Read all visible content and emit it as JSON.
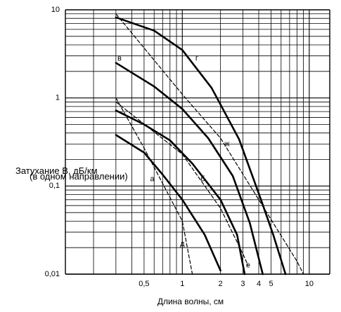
{
  "chart_data": {
    "type": "line",
    "x_scale": "log",
    "y_scale": "log",
    "xlim": [
      0.12,
      14.5
    ],
    "ylim": [
      0.01,
      10
    ],
    "xlabel": "Длина волны, см",
    "ylabel_line1": "Затухание В, дБ/км",
    "ylabel_line2": "(в одном направлении)",
    "x_ticks": [
      {
        "value": 0.5,
        "label": "0,5"
      },
      {
        "value": 1,
        "label": "1"
      },
      {
        "value": 2,
        "label": "2"
      },
      {
        "value": 3,
        "label": "3"
      },
      {
        "value": 4,
        "label": "4"
      },
      {
        "value": 5,
        "label": "5"
      },
      {
        "value": 10,
        "label": "10"
      }
    ],
    "y_ticks": [
      {
        "value": 10,
        "label": "10"
      },
      {
        "value": 1,
        "label": "1"
      },
      {
        "value": 0.1,
        "label": "0,1"
      },
      {
        "value": 0.01,
        "label": "0,01"
      }
    ],
    "grid": true,
    "series": [
      {
        "name": "а",
        "style": "solid",
        "label_at": [
          0.58,
          0.12
        ],
        "points": [
          [
            0.3,
            0.38
          ],
          [
            0.5,
            0.24
          ],
          [
            0.7,
            0.135
          ],
          [
            1.0,
            0.07
          ],
          [
            1.5,
            0.028
          ],
          [
            2.0,
            0.011
          ]
        ]
      },
      {
        "name": "б",
        "style": "solid",
        "label_at": [
          1.45,
          0.12
        ],
        "points": [
          [
            0.3,
            0.72
          ],
          [
            0.5,
            0.5
          ],
          [
            0.8,
            0.33
          ],
          [
            1.2,
            0.18
          ],
          [
            2.0,
            0.07
          ],
          [
            2.7,
            0.028
          ],
          [
            3.1,
            0.01
          ]
        ]
      },
      {
        "name": "в",
        "style": "solid",
        "label_at": [
          0.32,
          2.8
        ],
        "points": [
          [
            0.3,
            2.5
          ],
          [
            0.6,
            1.35
          ],
          [
            1.0,
            0.75
          ],
          [
            1.6,
            0.35
          ],
          [
            2.5,
            0.13
          ],
          [
            3.4,
            0.038
          ],
          [
            4.3,
            0.01
          ]
        ]
      },
      {
        "name": "г",
        "style": "solid",
        "label_at": [
          1.3,
          2.8
        ],
        "points": [
          [
            0.3,
            8.2
          ],
          [
            0.6,
            5.8
          ],
          [
            1.0,
            3.5
          ],
          [
            1.7,
            1.3
          ],
          [
            2.8,
            0.34
          ],
          [
            4.2,
            0.068
          ],
          [
            5.2,
            0.028
          ],
          [
            6.5,
            0.01
          ]
        ]
      },
      {
        "name": "д",
        "style": "dashed",
        "label_at": [
          1.0,
          0.022
        ],
        "points": [
          [
            0.3,
            1.0
          ],
          [
            0.5,
            0.27
          ],
          [
            1.0,
            0.04
          ],
          [
            1.2,
            0.01
          ]
        ]
      },
      {
        "name": "е",
        "style": "dashed",
        "label_at": [
          3.3,
          0.0125
        ],
        "points": [
          [
            0.3,
            0.9
          ],
          [
            1.0,
            0.23
          ],
          [
            2.0,
            0.056
          ],
          [
            3.0,
            0.017
          ],
          [
            3.3,
            0.0125
          ]
        ]
      },
      {
        "name": "ж",
        "style": "dashed",
        "label_at": [
          2.25,
          0.3
        ],
        "points": [
          [
            0.3,
            9.0
          ],
          [
            1.0,
            1.1
          ],
          [
            2.0,
            0.35
          ],
          [
            4.0,
            0.07
          ],
          [
            8.0,
            0.014
          ],
          [
            9.0,
            0.01
          ]
        ]
      }
    ]
  }
}
